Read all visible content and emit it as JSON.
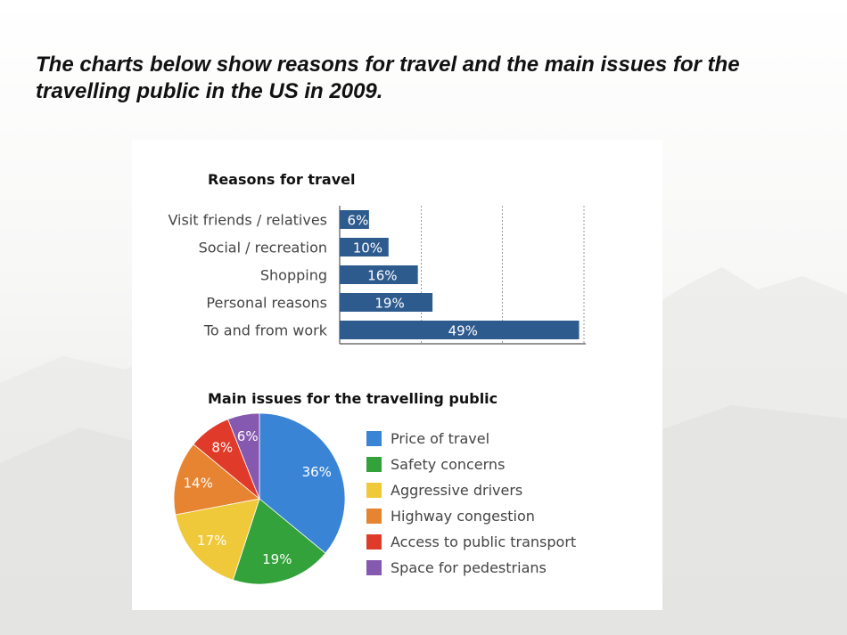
{
  "heading": "The charts below show reasons for travel and the main issues for the travelling public in the US in 2009.",
  "chart_data": [
    {
      "type": "bar",
      "orientation": "horizontal",
      "title": "Reasons for travel",
      "categories": [
        "Visit friends / relatives",
        "Social / recreation",
        "Shopping",
        "Personal reasons",
        "To and from work"
      ],
      "values": [
        6,
        10,
        16,
        19,
        49
      ],
      "value_labels": [
        "6%",
        "10%",
        "16%",
        "19%",
        "49%"
      ],
      "unit": "%",
      "xlim": [
        0,
        50
      ],
      "gridlines": [
        0,
        16.7,
        33.3,
        50
      ],
      "grid": true,
      "bar_color": "#2e5b8e"
    },
    {
      "type": "pie",
      "title": "Main issues for the travelling public",
      "labels": [
        "Price of travel",
        "Safety concerns",
        "Aggressive drivers",
        "Highway congestion",
        "Access to public transport",
        "Space for pedestrians"
      ],
      "values": [
        36,
        19,
        17,
        14,
        8,
        6
      ],
      "value_labels": [
        "36%",
        "19%",
        "17%",
        "14%",
        "8%",
        "6%"
      ],
      "colors": [
        "#3a84d6",
        "#33a23a",
        "#f0c93a",
        "#e78431",
        "#e03b2a",
        "#8659b0"
      ],
      "legend_position": "right"
    }
  ]
}
